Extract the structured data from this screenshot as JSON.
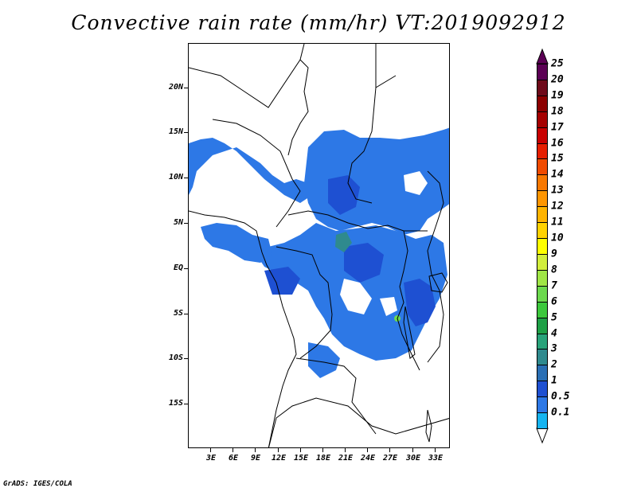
{
  "title": "Convective rain rate (mm/hr) VT:2019092912",
  "footer": "GrADS: IGES/COLA",
  "lat_labels": [
    "20N",
    "15N",
    "10N",
    "5N",
    "EQ",
    "5S",
    "10S",
    "15S"
  ],
  "lon_labels": [
    "3E",
    "6E",
    "9E",
    "12E",
    "15E",
    "18E",
    "21E",
    "24E",
    "27E",
    "30E",
    "33E"
  ],
  "colorbar": {
    "labels": [
      "25",
      "20",
      "19",
      "18",
      "17",
      "16",
      "15",
      "14",
      "13",
      "12",
      "11",
      "10",
      "9",
      "8",
      "7",
      "6",
      "5",
      "4",
      "3",
      "2",
      "1",
      "0.5",
      "0.1"
    ],
    "colors": [
      "#5b0054",
      "#6e0a1a",
      "#8c0000",
      "#a50000",
      "#c80000",
      "#e61e00",
      "#f04b00",
      "#f87800",
      "#ff9600",
      "#ffb400",
      "#ffd200",
      "#ffff00",
      "#d2ee3c",
      "#a0e646",
      "#6cd94e",
      "#3cc83c",
      "#1ea046",
      "#29a37a",
      "#2f8a8e",
      "#2a6fb4",
      "#1e50d2",
      "#2d78e6",
      "#16b4f0"
    ]
  },
  "legend_marks": {
    "top": "arrow-up",
    "bottom": "arrow-down-white"
  },
  "map": {
    "lon_range": [
      0,
      35
    ],
    "lat_range": [
      -20,
      25
    ],
    "rain_colors": {
      "light": "#2d78e6",
      "moderate": "#1e50d2",
      "heavy": "#2f8a8e",
      "peak": "#6cd94e"
    }
  }
}
